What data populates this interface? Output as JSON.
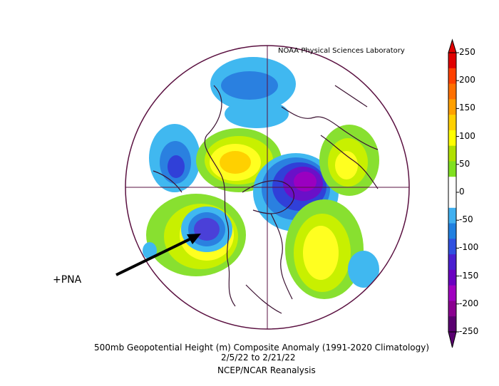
{
  "header": {
    "credit": "NOAA Physical Sciences Laboratory"
  },
  "footer": {
    "title": "500mb Geopotential Height (m) Composite Anomaly (1991-2020 Climatology)",
    "dates": "2/5/22  to 2/21/22",
    "source": "NCEP/NCAR Reanalysis"
  },
  "annotation": {
    "label": "+PNA"
  },
  "colorbar": {
    "ticks": [
      "250",
      "200",
      "150",
      "100",
      "50",
      "0",
      "-50",
      "-100",
      "-150",
      "-200",
      "-250"
    ],
    "colors": [
      "#5a0070",
      "#8a0090",
      "#a000c0",
      "#6a00c0",
      "#4a20d0",
      "#3050e0",
      "#2080e0",
      "#40b0f0",
      "#ffffff",
      "#ffffff",
      "#80e020",
      "#b0e000",
      "#ffff00",
      "#ffd000",
      "#ffa000",
      "#ff7000",
      "#ff4000",
      "#e00000"
    ]
  },
  "map": {
    "projection": "north polar stereographic",
    "colors": {
      "border": "#5a1040",
      "coast": "#3a1030"
    }
  }
}
